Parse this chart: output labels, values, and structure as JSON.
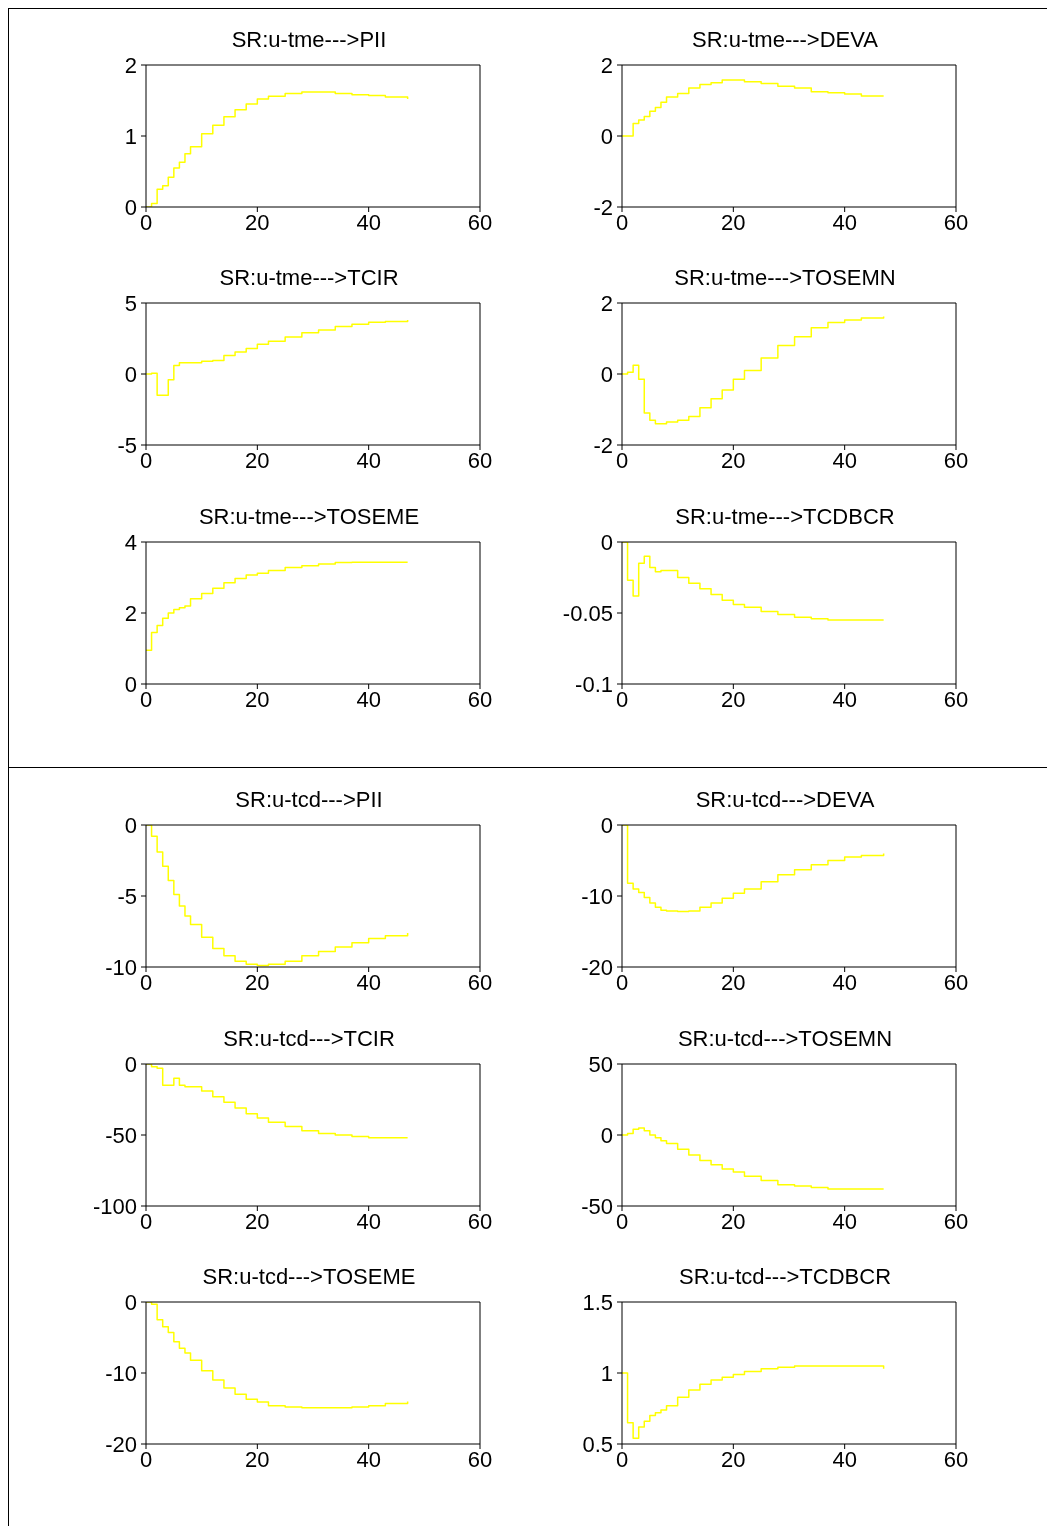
{
  "chart_data": [
    {
      "type": "step",
      "title": "SR:u-tme--->PII",
      "color": "#ffff00",
      "xlim": [
        0,
        60
      ],
      "xticks": [
        0,
        20,
        40,
        60
      ],
      "ylim": [
        0,
        2
      ],
      "yticks": [
        0,
        1,
        2
      ],
      "x": [
        0,
        1,
        2,
        3,
        4,
        5,
        6,
        7,
        8,
        10,
        12,
        14,
        16,
        18,
        20,
        22,
        25,
        28,
        31,
        34,
        37,
        40,
        43,
        47
      ],
      "values": [
        0,
        0.05,
        0.25,
        0.3,
        0.42,
        0.55,
        0.63,
        0.75,
        0.85,
        1.03,
        1.15,
        1.27,
        1.37,
        1.45,
        1.52,
        1.56,
        1.6,
        1.62,
        1.62,
        1.6,
        1.58,
        1.57,
        1.55,
        1.52
      ]
    },
    {
      "type": "step",
      "title": "SR:u-tme--->DEVA",
      "color": "#ffff00",
      "xlim": [
        0,
        60
      ],
      "xticks": [
        0,
        20,
        40,
        60
      ],
      "ylim": [
        -2,
        2
      ],
      "yticks": [
        -2,
        0,
        2
      ],
      "x": [
        0,
        1,
        2,
        3,
        4,
        5,
        6,
        7,
        8,
        10,
        12,
        14,
        16,
        18,
        20,
        22,
        25,
        28,
        31,
        34,
        37,
        40,
        43,
        47
      ],
      "values": [
        0,
        0,
        0.35,
        0.45,
        0.55,
        0.7,
        0.8,
        0.95,
        1.1,
        1.2,
        1.35,
        1.45,
        1.5,
        1.58,
        1.58,
        1.53,
        1.48,
        1.4,
        1.35,
        1.25,
        1.22,
        1.18,
        1.13,
        1.13
      ]
    },
    {
      "type": "step",
      "title": "SR:u-tme--->TCIR",
      "color": "#ffff00",
      "xlim": [
        0,
        60
      ],
      "xticks": [
        0,
        20,
        40,
        60
      ],
      "ylim": [
        -5,
        5
      ],
      "yticks": [
        -5,
        0,
        5
      ],
      "x": [
        0,
        1,
        2,
        3,
        4,
        5,
        6,
        7,
        8,
        10,
        12,
        14,
        16,
        18,
        20,
        22,
        25,
        28,
        31,
        34,
        37,
        40,
        43,
        47
      ],
      "values": [
        0,
        0.05,
        -1.5,
        -1.5,
        -0.4,
        0.6,
        0.8,
        0.8,
        0.8,
        0.9,
        0.95,
        1.3,
        1.55,
        1.8,
        2.1,
        2.3,
        2.6,
        2.9,
        3.1,
        3.35,
        3.5,
        3.65,
        3.7,
        3.8
      ]
    },
    {
      "type": "step",
      "title": "SR:u-tme--->TOSEMN",
      "color": "#ffff00",
      "xlim": [
        0,
        60
      ],
      "xticks": [
        0,
        20,
        40,
        60
      ],
      "ylim": [
        -2,
        2
      ],
      "yticks": [
        -2,
        0,
        2
      ],
      "x": [
        0,
        1,
        2,
        3,
        4,
        5,
        6,
        7,
        8,
        10,
        12,
        14,
        16,
        18,
        20,
        22,
        25,
        28,
        31,
        34,
        37,
        40,
        43,
        47
      ],
      "values": [
        0,
        0.05,
        0.25,
        -0.15,
        -1.1,
        -1.3,
        -1.4,
        -1.4,
        -1.35,
        -1.3,
        -1.2,
        -0.95,
        -0.7,
        -0.45,
        -0.15,
        0.1,
        0.45,
        0.8,
        1.05,
        1.3,
        1.45,
        1.52,
        1.58,
        1.62
      ]
    },
    {
      "type": "step",
      "title": "SR:u-tme--->TOSEME",
      "color": "#ffff00",
      "xlim": [
        0,
        60
      ],
      "xticks": [
        0,
        20,
        40,
        60
      ],
      "ylim": [
        0,
        4
      ],
      "yticks": [
        0,
        2,
        4
      ],
      "x": [
        0,
        1,
        2,
        3,
        4,
        5,
        6,
        7,
        8,
        10,
        12,
        14,
        16,
        18,
        20,
        22,
        25,
        28,
        31,
        34,
        37,
        40,
        43,
        47
      ],
      "values": [
        0.95,
        1.45,
        1.65,
        1.85,
        2.0,
        2.1,
        2.15,
        2.2,
        2.4,
        2.55,
        2.7,
        2.85,
        2.97,
        3.07,
        3.12,
        3.2,
        3.28,
        3.33,
        3.38,
        3.42,
        3.43,
        3.43,
        3.43,
        3.43
      ]
    },
    {
      "type": "step",
      "title": "SR:u-tme--->TCDBCR",
      "color": "#ffff00",
      "xlim": [
        0,
        60
      ],
      "xticks": [
        0,
        20,
        40,
        60
      ],
      "ylim": [
        -0.1,
        0
      ],
      "yticks": [
        -0.1,
        -0.05,
        0
      ],
      "x": [
        0,
        1,
        2,
        3,
        4,
        5,
        6,
        7,
        8,
        10,
        12,
        14,
        16,
        18,
        20,
        22,
        25,
        28,
        31,
        34,
        37,
        40,
        43,
        47
      ],
      "values": [
        0,
        -0.027,
        -0.038,
        -0.015,
        -0.01,
        -0.018,
        -0.021,
        -0.02,
        -0.02,
        -0.025,
        -0.029,
        -0.033,
        -0.037,
        -0.041,
        -0.044,
        -0.046,
        -0.049,
        -0.051,
        -0.053,
        -0.054,
        -0.055,
        -0.055,
        -0.055,
        -0.055
      ]
    },
    {
      "type": "step",
      "title": "SR:u-tcd--->PII",
      "color": "#ffff00",
      "xlim": [
        0,
        60
      ],
      "xticks": [
        0,
        20,
        40,
        60
      ],
      "ylim": [
        -10,
        0
      ],
      "yticks": [
        -10,
        -5,
        0
      ],
      "x": [
        0,
        1,
        2,
        3,
        4,
        5,
        6,
        7,
        8,
        10,
        12,
        14,
        16,
        18,
        20,
        22,
        25,
        28,
        31,
        34,
        37,
        40,
        43,
        47
      ],
      "values": [
        0,
        -0.8,
        -1.9,
        -2.9,
        -3.9,
        -4.9,
        -5.7,
        -6.4,
        -7.0,
        -7.9,
        -8.7,
        -9.2,
        -9.6,
        -9.8,
        -9.9,
        -9.8,
        -9.6,
        -9.2,
        -8.9,
        -8.6,
        -8.3,
        -8.0,
        -7.8,
        -7.6
      ]
    },
    {
      "type": "step",
      "title": "SR:u-tcd--->DEVA",
      "color": "#ffff00",
      "xlim": [
        0,
        60
      ],
      "xticks": [
        0,
        20,
        40,
        60
      ],
      "ylim": [
        -20,
        0
      ],
      "yticks": [
        -20,
        -10,
        0
      ],
      "x": [
        0,
        1,
        2,
        3,
        4,
        5,
        6,
        7,
        8,
        10,
        12,
        14,
        16,
        18,
        20,
        22,
        25,
        28,
        31,
        34,
        37,
        40,
        43,
        47
      ],
      "values": [
        0,
        -8.2,
        -9,
        -9.5,
        -10.2,
        -11,
        -11.6,
        -12,
        -12.1,
        -12.2,
        -12.1,
        -11.6,
        -11.0,
        -10.3,
        -9.6,
        -9.0,
        -8.0,
        -7.0,
        -6.3,
        -5.6,
        -5.0,
        -4.5,
        -4.3,
        -4.0
      ]
    },
    {
      "type": "step",
      "title": "SR:u-tcd--->TCIR",
      "color": "#ffff00",
      "xlim": [
        0,
        60
      ],
      "xticks": [
        0,
        20,
        40,
        60
      ],
      "ylim": [
        -100,
        0
      ],
      "yticks": [
        -100,
        -50,
        0
      ],
      "x": [
        0,
        1,
        2,
        3,
        4,
        5,
        6,
        7,
        8,
        10,
        12,
        14,
        16,
        18,
        20,
        22,
        25,
        28,
        31,
        34,
        37,
        40,
        43,
        47
      ],
      "values": [
        0,
        -2,
        -3,
        -15,
        -15,
        -10,
        -15,
        -16,
        -16,
        -19,
        -23,
        -27,
        -31,
        -35,
        -38,
        -41,
        -44,
        -47,
        -49,
        -50,
        -51,
        -52,
        -52,
        -52
      ]
    },
    {
      "type": "step",
      "title": "SR:u-tcd--->TOSEMN",
      "color": "#ffff00",
      "xlim": [
        0,
        60
      ],
      "xticks": [
        0,
        20,
        40,
        60
      ],
      "ylim": [
        -50,
        50
      ],
      "yticks": [
        -50,
        0,
        50
      ],
      "x": [
        0,
        1,
        2,
        3,
        4,
        5,
        6,
        7,
        8,
        10,
        12,
        14,
        16,
        18,
        20,
        22,
        25,
        28,
        31,
        34,
        37,
        40,
        43,
        47
      ],
      "values": [
        0,
        1,
        4,
        5,
        3,
        0,
        -2,
        -4,
        -6,
        -10,
        -14,
        -18,
        -21,
        -24,
        -26,
        -29,
        -32,
        -35,
        -36,
        -37,
        -38,
        -38,
        -38,
        -38
      ]
    },
    {
      "type": "step",
      "title": "SR:u-tcd--->TOSEME",
      "color": "#ffff00",
      "xlim": [
        0,
        60
      ],
      "xticks": [
        0,
        20,
        40,
        60
      ],
      "ylim": [
        -20,
        0
      ],
      "yticks": [
        -20,
        -10,
        0
      ],
      "x": [
        0,
        1,
        2,
        3,
        4,
        5,
        6,
        7,
        8,
        10,
        12,
        14,
        16,
        18,
        20,
        22,
        25,
        28,
        31,
        34,
        37,
        40,
        43,
        47
      ],
      "values": [
        0,
        -0.3,
        -2.5,
        -3.5,
        -4.3,
        -5.6,
        -6.5,
        -7.2,
        -8.2,
        -9.7,
        -11,
        -12.1,
        -13,
        -13.7,
        -14.1,
        -14.6,
        -14.8,
        -14.9,
        -14.9,
        -14.9,
        -14.8,
        -14.6,
        -14.3,
        -14.0
      ]
    },
    {
      "type": "step",
      "title": "SR:u-tcd--->TCDBCR",
      "color": "#ffff00",
      "xlim": [
        0,
        60
      ],
      "xticks": [
        0,
        20,
        40,
        60
      ],
      "ylim": [
        0.5,
        1.5
      ],
      "yticks": [
        0.5,
        1,
        1.5
      ],
      "x": [
        0,
        1,
        2,
        3,
        4,
        5,
        6,
        7,
        8,
        10,
        12,
        14,
        16,
        18,
        20,
        22,
        25,
        28,
        31,
        34,
        37,
        40,
        43,
        47
      ],
      "values": [
        1,
        0.65,
        0.54,
        0.62,
        0.66,
        0.7,
        0.72,
        0.74,
        0.77,
        0.83,
        0.88,
        0.92,
        0.95,
        0.97,
        0.99,
        1.01,
        1.03,
        1.04,
        1.05,
        1.05,
        1.05,
        1.05,
        1.05,
        1.03
      ]
    }
  ]
}
